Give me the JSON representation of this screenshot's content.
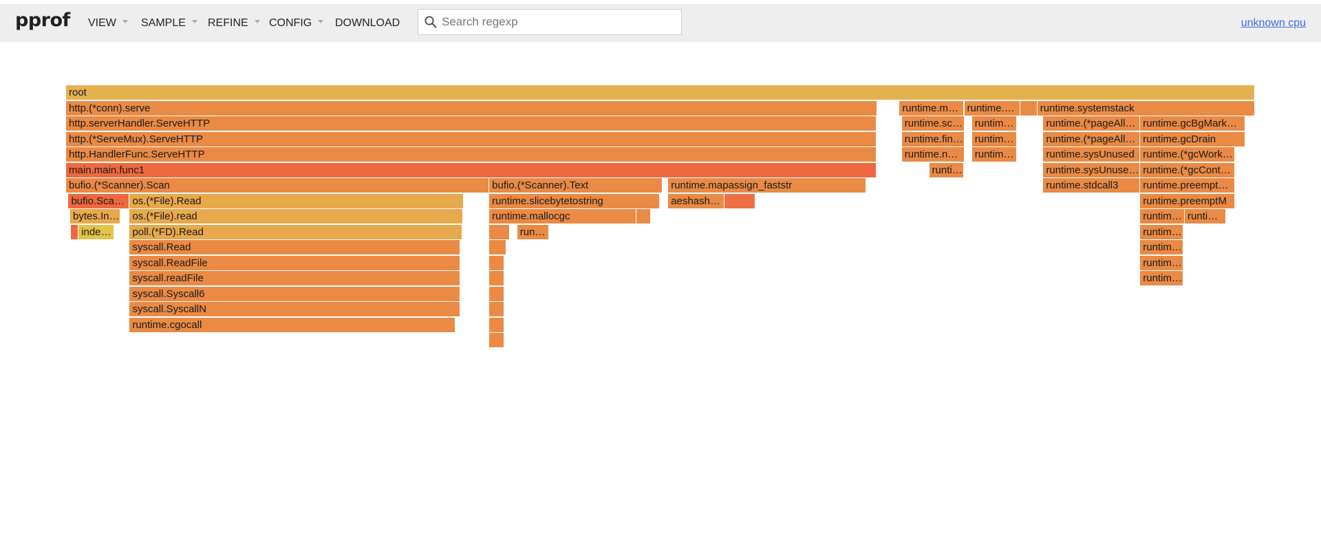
{
  "app": {
    "title": "pprof",
    "profile_name": "unknown cpu"
  },
  "menu": {
    "view": "VIEW",
    "sample": "SAMPLE",
    "refine": "REFINE",
    "config": "CONFIG",
    "download": "DOWNLOAD"
  },
  "search": {
    "placeholder": "Search regexp",
    "value": ""
  },
  "flamegraph": {
    "frames": [
      {
        "label": "root",
        "depth": 0,
        "start": 0.0,
        "width": 1.0,
        "color": "#e5b04e"
      },
      {
        "label": "http.(*conn).serve",
        "depth": 1,
        "start": 0.0,
        "width": 0.6825,
        "color": "#ea8a45"
      },
      {
        "label": "runtime.mstart",
        "depth": 1,
        "start": 0.701,
        "width": 0.0545,
        "color": "#ea8a45"
      },
      {
        "label": "runtime.gcBgMarkWorker",
        "depth": 1,
        "start": 0.7555,
        "width": 0.047,
        "color": "#ea8a45"
      },
      {
        "label": "",
        "depth": 1,
        "start": 0.8025,
        "width": 0.0145,
        "color": "#ea8a45"
      },
      {
        "label": "runtime.systemstack",
        "depth": 1,
        "start": 0.817,
        "width": 0.183,
        "color": "#ea8a45"
      },
      {
        "label": "http.serverHandler.ServeHTTP",
        "depth": 2,
        "start": 0.0,
        "width": 0.6815,
        "color": "#ea8a45"
      },
      {
        "label": "runtime.schedule",
        "depth": 2,
        "start": 0.703,
        "width": 0.0525,
        "color": "#ea8a45"
      },
      {
        "label": "runtime.gcDrain",
        "depth": 2,
        "start": 0.762,
        "width": 0.038,
        "color": "#ea8a45"
      },
      {
        "label": "runtime.(*pageAlloc).scavenge",
        "depth": 2,
        "start": 0.822,
        "width": 0.0812,
        "color": "#ea8a45"
      },
      {
        "label": "runtime.gcBgMarkWorker.func2",
        "depth": 2,
        "start": 0.9035,
        "width": 0.0885,
        "color": "#ea8a45"
      },
      {
        "label": "http.(*ServeMux).ServeHTTP",
        "depth": 3,
        "start": 0.0,
        "width": 0.6815,
        "color": "#ea8a45"
      },
      {
        "label": "runtime.findRunnable",
        "depth": 3,
        "start": 0.703,
        "width": 0.0525,
        "color": "#ea8a45"
      },
      {
        "label": "runtime.markroot",
        "depth": 3,
        "start": 0.762,
        "width": 0.038,
        "color": "#ea8a45"
      },
      {
        "label": "runtime.(*pageAlloc).scavengeOne",
        "depth": 3,
        "start": 0.822,
        "width": 0.0812,
        "color": "#ea8a45"
      },
      {
        "label": "runtime.gcDrain",
        "depth": 3,
        "start": 0.9035,
        "width": 0.0885,
        "color": "#ea8a45"
      },
      {
        "label": "http.HandlerFunc.ServeHTTP",
        "depth": 4,
        "start": 0.0,
        "width": 0.6815,
        "color": "#ea8a45"
      },
      {
        "label": "runtime.netpoll",
        "depth": 4,
        "start": 0.703,
        "width": 0.0525,
        "color": "#ea8a45"
      },
      {
        "label": "runtime.markrootSpans",
        "depth": 4,
        "start": 0.762,
        "width": 0.038,
        "color": "#ea8a45"
      },
      {
        "label": "runtime.sysUnused",
        "depth": 4,
        "start": 0.822,
        "width": 0.0812,
        "color": "#ea8a45"
      },
      {
        "label": "runtime.(*gcWork).balance",
        "depth": 4,
        "start": 0.9035,
        "width": 0.0795,
        "color": "#ea8a45"
      },
      {
        "label": "main.main.func1",
        "depth": 5,
        "start": 0.0,
        "width": 0.6815,
        "color": "#ee6940"
      },
      {
        "label": "runtime.netpollblock",
        "depth": 5,
        "start": 0.726,
        "width": 0.0295,
        "color": "#ea8a45"
      },
      {
        "label": "runtime.sysUnusedOS",
        "depth": 5,
        "start": 0.822,
        "width": 0.0812,
        "color": "#ea8a45"
      },
      {
        "label": "runtime.(*gcControllerState).enlistWorker",
        "depth": 5,
        "start": 0.9035,
        "width": 0.0795,
        "color": "#ea8a45"
      },
      {
        "label": "bufio.(*Scanner).Scan",
        "depth": 6,
        "start": 0.0,
        "width": 0.356,
        "color": "#ea8a45"
      },
      {
        "label": "bufio.(*Scanner).Text",
        "depth": 6,
        "start": 0.356,
        "width": 0.1455,
        "color": "#ea8a45"
      },
      {
        "label": "runtime.mapassign_faststr",
        "depth": 6,
        "start": 0.5065,
        "width": 0.1665,
        "color": "#ea8a45"
      },
      {
        "label": "runtime.stdcall3",
        "depth": 6,
        "start": 0.822,
        "width": 0.0812,
        "color": "#ea8a45"
      },
      {
        "label": "runtime.preemptone",
        "depth": 6,
        "start": 0.9035,
        "width": 0.0795,
        "color": "#ea8a45"
      },
      {
        "label": "bufio.Scanner.Split",
        "depth": 7,
        "start": 0.002,
        "width": 0.0515,
        "color": "#ee6940"
      },
      {
        "label": "os.(*File).Read",
        "depth": 7,
        "start": 0.0535,
        "width": 0.281,
        "color": "#e8a84c"
      },
      {
        "label": "runtime.slicebytetostring",
        "depth": 7,
        "start": 0.356,
        "width": 0.1435,
        "color": "#ea8a45"
      },
      {
        "label": "aeshashbody",
        "depth": 7,
        "start": 0.5065,
        "width": 0.0475,
        "color": "#ea8a45"
      },
      {
        "label": "",
        "depth": 7,
        "start": 0.554,
        "width": 0.026,
        "color": "#ee7045"
      },
      {
        "label": "runtime.preemptM",
        "depth": 7,
        "start": 0.9035,
        "width": 0.0795,
        "color": "#ea8a45"
      },
      {
        "label": "bytes.IndexByte",
        "depth": 8,
        "start": 0.0035,
        "width": 0.0425,
        "color": "#e8a84c"
      },
      {
        "label": "os.(*File).read",
        "depth": 8,
        "start": 0.0535,
        "width": 0.2805,
        "color": "#e8a84c"
      },
      {
        "label": "runtime.mallocgc",
        "depth": 8,
        "start": 0.356,
        "width": 0.1235,
        "color": "#ea8a45"
      },
      {
        "label": "",
        "depth": 8,
        "start": 0.4795,
        "width": 0.0125,
        "color": "#ea8a45"
      },
      {
        "label": "runtime.suspendG",
        "depth": 8,
        "start": 0.9035,
        "width": 0.0375,
        "color": "#ea8a45"
      },
      {
        "label": "runtime.unlock",
        "depth": 8,
        "start": 0.941,
        "width": 0.0345,
        "color": "#ea8a45"
      },
      {
        "label": "",
        "depth": 9,
        "start": 0.004,
        "width": 0.0065,
        "color": "#ee6940"
      },
      {
        "label": "indexbytebody",
        "depth": 9,
        "start": 0.0105,
        "width": 0.03,
        "color": "#e3c44a"
      },
      {
        "label": "poll.(*FD).Read",
        "depth": 9,
        "start": 0.0535,
        "width": 0.28,
        "color": "#e8a84c"
      },
      {
        "label": "",
        "depth": 9,
        "start": 0.356,
        "width": 0.0175,
        "color": "#ea8a45"
      },
      {
        "label": "runtime.nextFreeFast",
        "depth": 9,
        "start": 0.3795,
        "width": 0.0265,
        "color": "#ea8a45"
      },
      {
        "label": "runtime.semasleep",
        "depth": 9,
        "start": 0.9035,
        "width": 0.0365,
        "color": "#ea8a45"
      },
      {
        "label": "syscall.Read",
        "depth": 10,
        "start": 0.0535,
        "width": 0.278,
        "color": "#ea8a45"
      },
      {
        "label": "",
        "depth": 10,
        "start": 0.356,
        "width": 0.0145,
        "color": "#ea8a45"
      },
      {
        "label": "runtime.semasleep.func1",
        "depth": 10,
        "start": 0.9035,
        "width": 0.0365,
        "color": "#ea8a45"
      },
      {
        "label": "syscall.ReadFile",
        "depth": 11,
        "start": 0.0535,
        "width": 0.278,
        "color": "#ea8a45"
      },
      {
        "label": "",
        "depth": 11,
        "start": 0.356,
        "width": 0.0125,
        "color": "#ea8a45"
      },
      {
        "label": "runtime.stdcall2",
        "depth": 11,
        "start": 0.9035,
        "width": 0.0365,
        "color": "#ea8a45"
      },
      {
        "label": "syscall.readFile",
        "depth": 12,
        "start": 0.0535,
        "width": 0.278,
        "color": "#ea8a45"
      },
      {
        "label": "",
        "depth": 12,
        "start": 0.356,
        "width": 0.0125,
        "color": "#ea8a45"
      },
      {
        "label": "runtime.stdcall",
        "depth": 12,
        "start": 0.9035,
        "width": 0.0365,
        "color": "#ea8a45"
      },
      {
        "label": "syscall.Syscall6",
        "depth": 13,
        "start": 0.0535,
        "width": 0.278,
        "color": "#ea8a45"
      },
      {
        "label": "",
        "depth": 13,
        "start": 0.356,
        "width": 0.0125,
        "color": "#ea8a45"
      },
      {
        "label": "syscall.SyscallN",
        "depth": 14,
        "start": 0.0535,
        "width": 0.278,
        "color": "#ea8a45"
      },
      {
        "label": "",
        "depth": 14,
        "start": 0.356,
        "width": 0.0125,
        "color": "#ea8a45"
      },
      {
        "label": "runtime.cgocall",
        "depth": 15,
        "start": 0.0535,
        "width": 0.274,
        "color": "#ea8a45"
      },
      {
        "label": "",
        "depth": 15,
        "start": 0.356,
        "width": 0.0125,
        "color": "#ea8a45"
      },
      {
        "label": "",
        "depth": 16,
        "start": 0.356,
        "width": 0.0125,
        "color": "#ea8a45"
      }
    ]
  }
}
